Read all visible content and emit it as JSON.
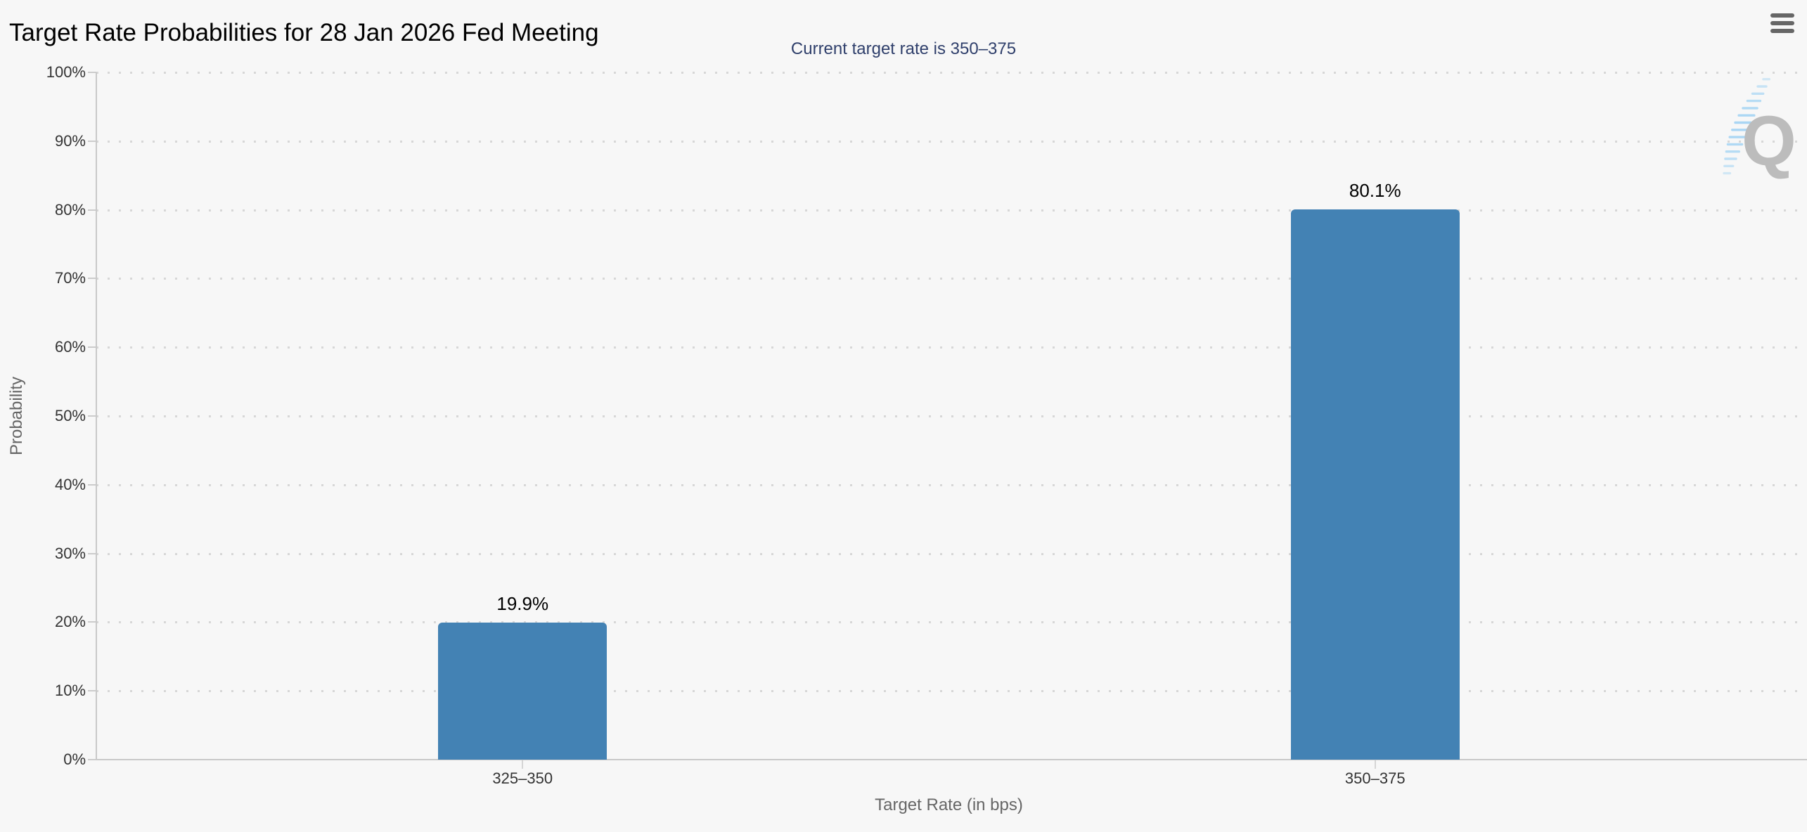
{
  "header": {
    "title": "Target Rate Probabilities for 28 Jan 2026 Fed Meeting",
    "subtitle": "Current target rate is 350–375",
    "menu_icon": "hamburger-icon"
  },
  "watermark": {
    "letter": "Q"
  },
  "chart_data": {
    "type": "bar",
    "title": "Target Rate Probabilities for 28 Jan 2026 Fed Meeting",
    "subtitle": "Current target rate is 350–375",
    "categories": [
      "325–350",
      "350–375"
    ],
    "values": [
      19.9,
      80.1
    ],
    "value_labels": [
      "19.9%",
      "80.1%"
    ],
    "xlabel": "Target Rate (in bps)",
    "ylabel": "Probability",
    "ylim": [
      0,
      100
    ],
    "ytick_step": 10,
    "ytick_labels": [
      "0%",
      "10%",
      "20%",
      "30%",
      "40%",
      "50%",
      "60%",
      "70%",
      "80%",
      "90%",
      "100%"
    ],
    "legend": "none",
    "grid": "horizontal-dotted",
    "colors": {
      "bar": "#4382b4",
      "title": "#000000",
      "subtitle": "#2f3f6b",
      "axis_labels": "#333333",
      "axis_titles": "#666666",
      "gridline": "#d7d7d7",
      "axis_line": "#c9c9c9",
      "watermark_q": "#bcbcbc",
      "watermark_dash": "#a5d4f3",
      "background": "#f7f7f7"
    }
  }
}
